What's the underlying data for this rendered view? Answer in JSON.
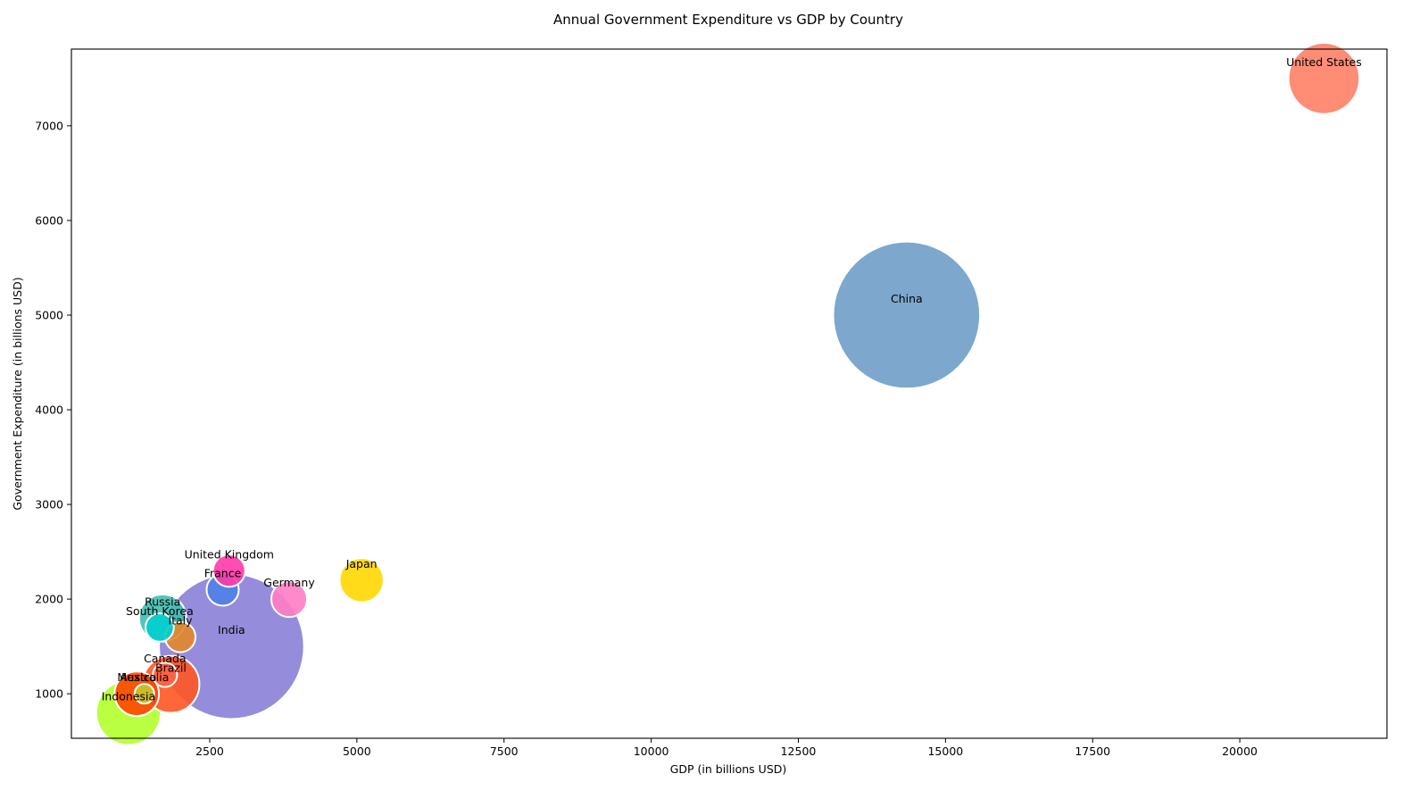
{
  "chart_data": {
    "type": "scatter",
    "title": "Annual Government Expenditure vs GDP by Country",
    "xlabel": "GDP (in billions USD)",
    "ylabel": "Government Expenditure (in billions USD)",
    "xlim": [
      150,
      22500
    ],
    "ylim": [
      530,
      7810
    ],
    "xticks": [
      2500,
      5000,
      7500,
      10000,
      12500,
      15000,
      17500,
      20000
    ],
    "yticks": [
      1000,
      2000,
      3000,
      4000,
      5000,
      6000,
      7000
    ],
    "grid": false,
    "legend": "none",
    "size_note": "bubble area proportional to population (millions), estimated",
    "points": [
      {
        "label": "China",
        "x": 14340,
        "y": 5000,
        "size": 1400,
        "color": "#6f9dc6"
      },
      {
        "label": "India",
        "x": 2870,
        "y": 1500,
        "size": 1366,
        "color": "#8b7fd8"
      },
      {
        "label": "United States",
        "x": 21430,
        "y": 7500,
        "size": 328,
        "color": "#ff7f66"
      },
      {
        "label": "Indonesia",
        "x": 1120,
        "y": 800,
        "size": 270,
        "color": "#b2ff2e"
      },
      {
        "label": "Brazil",
        "x": 1840,
        "y": 1100,
        "size": 211,
        "color": "#ff5622"
      },
      {
        "label": "Mexico",
        "x": 1260,
        "y": 1000,
        "size": 128,
        "color": "#ff4500"
      },
      {
        "label": "Russia",
        "x": 1700,
        "y": 1800,
        "size": 144,
        "color": "#40bfb0"
      },
      {
        "label": "Japan",
        "x": 5080,
        "y": 2200,
        "size": 126,
        "color": "#ffd700"
      },
      {
        "label": "Germany",
        "x": 3850,
        "y": 2000,
        "size": 83,
        "color": "#ff7cc4"
      },
      {
        "label": "France",
        "x": 2720,
        "y": 2100,
        "size": 67,
        "color": "#4f80e8"
      },
      {
        "label": "United Kingdom",
        "x": 2830,
        "y": 2300,
        "size": 67,
        "color": "#ff3aa8"
      },
      {
        "label": "Italy",
        "x": 2000,
        "y": 1600,
        "size": 60,
        "color": "#e3872a"
      },
      {
        "label": "South Korea",
        "x": 1650,
        "y": 1700,
        "size": 52,
        "color": "#00cfcf"
      },
      {
        "label": "Canada",
        "x": 1740,
        "y": 1200,
        "size": 38,
        "color": "#ff6347"
      },
      {
        "label": "Australia",
        "x": 1390,
        "y": 1000,
        "size": 25,
        "color": "#c8c82a"
      }
    ]
  }
}
